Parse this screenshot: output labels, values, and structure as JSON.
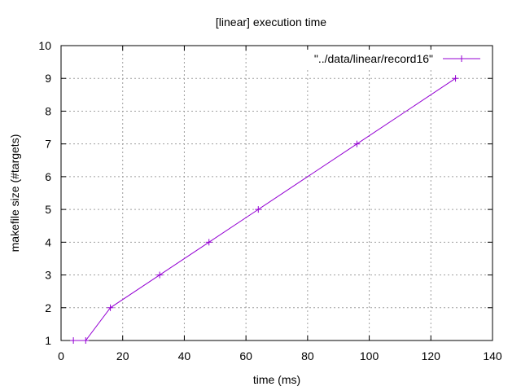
{
  "chart_data": {
    "type": "line",
    "title": "[linear] execution time",
    "xlabel": "time (ms)",
    "ylabel": "makefile size (#targets)",
    "xlim": [
      0,
      140
    ],
    "ylim": [
      1,
      10
    ],
    "xticks": [
      0,
      20,
      40,
      60,
      80,
      100,
      120,
      140
    ],
    "yticks": [
      1,
      2,
      3,
      4,
      5,
      6,
      7,
      8,
      9,
      10
    ],
    "grid": true,
    "legend_position": "top-right",
    "series": [
      {
        "name": "\"../data/linear/record16\"",
        "color": "#9400d3",
        "marker": "plus",
        "x": [
          4,
          8,
          16,
          32,
          48,
          64,
          96,
          128
        ],
        "y": [
          1,
          1,
          2,
          3,
          4,
          5,
          7,
          9
        ]
      }
    ]
  }
}
